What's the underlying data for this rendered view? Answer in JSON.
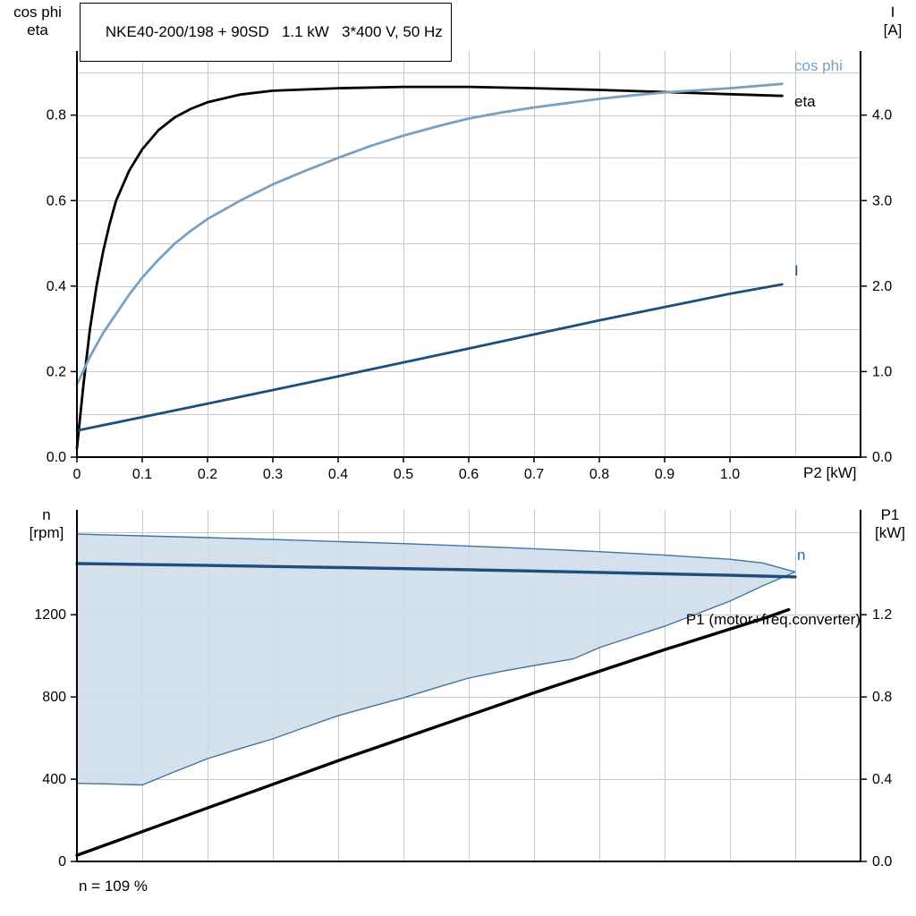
{
  "labels": {
    "title": "NKE40-200/198 + 90SD   1.1 kW   3*400 V, 50 Hz",
    "top_left_1": "cos phi",
    "top_left_2": "eta",
    "top_right_1": "I",
    "top_right_2": "[A]",
    "x_axis": "P2 [kW]",
    "curve_cos_phi": "cos phi",
    "curve_eta": "eta",
    "curve_I": "I",
    "bottom_left_1": "n",
    "bottom_left_2": "[rpm]",
    "bottom_right_1": "P1",
    "bottom_right_2": "[kW]",
    "curve_n": "n",
    "curve_p1": "P1 (motor+freq.converter)",
    "annotation": "n = 109 %"
  },
  "colors": {
    "eta": "#000000",
    "cos_phi": "#7aa0c0",
    "current": "#1c4e7e",
    "n": "#1c4e7e",
    "p1": "#000000",
    "band_fill": "#cfdde9",
    "band_edge": "#3f74a3",
    "grid": "#c8c8c8",
    "axis": "#000000"
  },
  "chart_data": [
    {
      "type": "line",
      "title": "NKE40-200/198 + 90SD   1.1 kW   3*400 V, 50 Hz",
      "x": {
        "label": "P2 [kW]",
        "min": 0,
        "max": 1.2,
        "grid": 0.1,
        "ticks": [
          {
            "v": 0,
            "t": "0"
          },
          {
            "v": 0.1,
            "t": "0.1"
          },
          {
            "v": 0.2,
            "t": "0.2"
          },
          {
            "v": 0.3,
            "t": "0.3"
          },
          {
            "v": 0.4,
            "t": "0.4"
          },
          {
            "v": 0.5,
            "t": "0.5"
          },
          {
            "v": 0.6,
            "t": "0.6"
          },
          {
            "v": 0.7,
            "t": "0.7"
          },
          {
            "v": 0.8,
            "t": "0.8"
          },
          {
            "v": 0.9,
            "t": "0.9"
          },
          {
            "v": 1.0,
            "t": "1.0"
          }
        ]
      },
      "y_left": {
        "label": "cos phi / eta",
        "min": 0,
        "max": 0.95,
        "grid": 0.1,
        "ticks": [
          {
            "v": 0.0,
            "t": "0.0"
          },
          {
            "v": 0.2,
            "t": "0.2"
          },
          {
            "v": 0.4,
            "t": "0.4"
          },
          {
            "v": 0.6,
            "t": "0.6"
          },
          {
            "v": 0.8,
            "t": "0.8"
          }
        ]
      },
      "y_right": {
        "label": "I [A]",
        "min": 0,
        "max": 4.75,
        "grid": null,
        "ticks": [
          {
            "v": 0,
            "t": "0.0"
          },
          {
            "v": 1,
            "t": "1.0"
          },
          {
            "v": 2,
            "t": "2.0"
          },
          {
            "v": 3,
            "t": "3.0"
          },
          {
            "v": 4,
            "t": "4.0"
          }
        ]
      },
      "series": [
        {
          "name": "eta",
          "axis": "left",
          "color": "#000000",
          "width": 2.8,
          "points": [
            [
              0,
              0.02
            ],
            [
              0.01,
              0.17
            ],
            [
              0.02,
              0.3
            ],
            [
              0.03,
              0.4
            ],
            [
              0.04,
              0.48
            ],
            [
              0.05,
              0.545
            ],
            [
              0.06,
              0.6
            ],
            [
              0.08,
              0.67
            ],
            [
              0.1,
              0.72
            ],
            [
              0.125,
              0.765
            ],
            [
              0.15,
              0.795
            ],
            [
              0.175,
              0.815
            ],
            [
              0.2,
              0.83
            ],
            [
              0.25,
              0.848
            ],
            [
              0.3,
              0.857
            ],
            [
              0.4,
              0.863
            ],
            [
              0.5,
              0.866
            ],
            [
              0.6,
              0.866
            ],
            [
              0.7,
              0.863
            ],
            [
              0.8,
              0.859
            ],
            [
              0.9,
              0.854
            ],
            [
              1.0,
              0.849
            ],
            [
              1.08,
              0.845
            ]
          ]
        },
        {
          "name": "cos phi",
          "axis": "left",
          "color": "#7aa0c0",
          "width": 2.8,
          "points": [
            [
              0,
              0.17
            ],
            [
              0.02,
              0.235
            ],
            [
              0.04,
              0.29
            ],
            [
              0.06,
              0.335
            ],
            [
              0.08,
              0.38
            ],
            [
              0.1,
              0.42
            ],
            [
              0.125,
              0.462
            ],
            [
              0.15,
              0.5
            ],
            [
              0.175,
              0.53
            ],
            [
              0.2,
              0.557
            ],
            [
              0.25,
              0.6
            ],
            [
              0.3,
              0.638
            ],
            [
              0.35,
              0.67
            ],
            [
              0.4,
              0.7
            ],
            [
              0.45,
              0.728
            ],
            [
              0.5,
              0.752
            ],
            [
              0.55,
              0.773
            ],
            [
              0.6,
              0.792
            ],
            [
              0.65,
              0.806
            ],
            [
              0.7,
              0.818
            ],
            [
              0.75,
              0.828
            ],
            [
              0.8,
              0.838
            ],
            [
              0.85,
              0.846
            ],
            [
              0.9,
              0.853
            ],
            [
              0.95,
              0.858
            ],
            [
              1.0,
              0.863
            ],
            [
              1.04,
              0.868
            ],
            [
              1.08,
              0.873
            ]
          ]
        },
        {
          "name": "I",
          "axis": "right",
          "color": "#1c4e7e",
          "width": 2.8,
          "points": [
            [
              0,
              0.31
            ],
            [
              0.2,
              0.625
            ],
            [
              0.4,
              0.945
            ],
            [
              0.6,
              1.27
            ],
            [
              0.8,
              1.6
            ],
            [
              1.0,
              1.91
            ],
            [
              1.08,
              2.02
            ]
          ]
        }
      ]
    },
    {
      "type": "line",
      "x": {
        "label": "",
        "min": 0,
        "max": 1.2,
        "grid": 0.1,
        "ticks": []
      },
      "y_left": {
        "label": "n [rpm]",
        "min": 0,
        "max": 1710,
        "grid": 400,
        "ticks": [
          {
            "v": 0,
            "t": "0"
          },
          {
            "v": 400,
            "t": "400"
          },
          {
            "v": 800,
            "t": "800"
          },
          {
            "v": 1200,
            "t": "1200"
          }
        ]
      },
      "y_right": {
        "label": "P1 [kW]",
        "min": 0,
        "max": 1.71,
        "grid": null,
        "ticks": [
          {
            "v": 0.0,
            "t": "0.0"
          },
          {
            "v": 0.4,
            "t": "0.4"
          },
          {
            "v": 0.8,
            "t": "0.8"
          },
          {
            "v": 1.2,
            "t": "1.2"
          }
        ]
      },
      "band": {
        "name": "speed-range",
        "fill": "#cfdde9",
        "edge": "#3f74a3",
        "axis": "left",
        "upper": [
          [
            0,
            1592
          ],
          [
            0.1,
            1584
          ],
          [
            0.2,
            1575
          ],
          [
            0.3,
            1566
          ],
          [
            0.4,
            1556
          ],
          [
            0.5,
            1546
          ],
          [
            0.6,
            1534
          ],
          [
            0.7,
            1521
          ],
          [
            0.8,
            1507
          ],
          [
            0.9,
            1490
          ],
          [
            1.0,
            1470
          ],
          [
            1.05,
            1452
          ],
          [
            1.1,
            1408
          ]
        ],
        "lower": [
          [
            0,
            380
          ],
          [
            0.05,
            377
          ],
          [
            0.1,
            372
          ],
          [
            0.15,
            437
          ],
          [
            0.2,
            500
          ],
          [
            0.25,
            549
          ],
          [
            0.3,
            596
          ],
          [
            0.35,
            653
          ],
          [
            0.4,
            709
          ],
          [
            0.45,
            753
          ],
          [
            0.5,
            796
          ],
          [
            0.55,
            845
          ],
          [
            0.6,
            892
          ],
          [
            0.65,
            924
          ],
          [
            0.7,
            953
          ],
          [
            0.76,
            985
          ],
          [
            0.8,
            1040
          ],
          [
            0.85,
            1092
          ],
          [
            0.9,
            1144
          ],
          [
            0.95,
            1205
          ],
          [
            1.0,
            1266
          ],
          [
            1.05,
            1340
          ],
          [
            1.1,
            1408
          ]
        ]
      },
      "series": [
        {
          "name": "n",
          "axis": "left",
          "color": "#1c4e7e",
          "width": 3.4,
          "points": [
            [
              0,
              1449
            ],
            [
              0.2,
              1440
            ],
            [
              0.4,
              1430
            ],
            [
              0.6,
              1419
            ],
            [
              0.8,
              1406
            ],
            [
              0.9,
              1399
            ],
            [
              1.0,
              1392
            ],
            [
              1.05,
              1388
            ],
            [
              1.1,
              1384
            ]
          ]
        },
        {
          "name": "P1 (motor+freq.converter)",
          "axis": "right",
          "color": "#000000",
          "width": 3.4,
          "points": [
            [
              0,
              0.03
            ],
            [
              0.1,
              0.145
            ],
            [
              0.2,
              0.26
            ],
            [
              0.3,
              0.375
            ],
            [
              0.4,
              0.49
            ],
            [
              0.5,
              0.6
            ],
            [
              0.6,
              0.71
            ],
            [
              0.7,
              0.82
            ],
            [
              0.8,
              0.925
            ],
            [
              0.9,
              1.03
            ],
            [
              1.0,
              1.13
            ],
            [
              1.05,
              1.18
            ],
            [
              1.09,
              1.225
            ]
          ]
        }
      ]
    }
  ]
}
